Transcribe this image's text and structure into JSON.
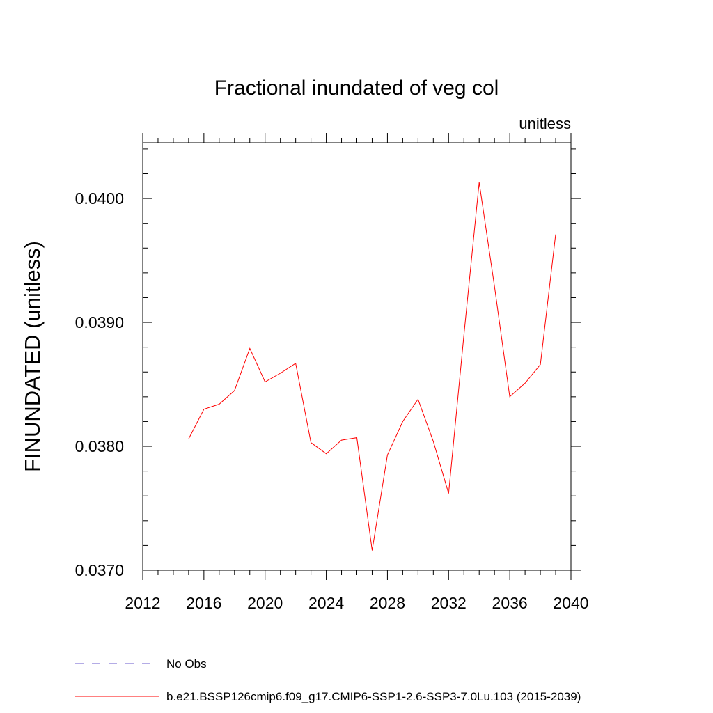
{
  "chart_data": {
    "type": "line",
    "title": "Fractional inundated of veg col",
    "units_label": "unitless",
    "ylabel": "FINUNDATED  (unitless)",
    "xlabel": "",
    "xlim": [
      2012,
      2040
    ],
    "ylim": [
      0.037,
      0.04045
    ],
    "x_ticks": [
      "2012",
      "2016",
      "2020",
      "2024",
      "2028",
      "2032",
      "2036",
      "2040"
    ],
    "y_ticks": [
      "0.0370",
      "0.0380",
      "0.0390",
      "0.0400"
    ],
    "grid": false,
    "legend_position": "bottom",
    "series": [
      {
        "name": "b.e21.BSSP126cmip6.f09_g17.CMIP6-SSP1-2.6-SSP3-7.0Lu.103 (2015-2039)",
        "color": "#ff0000",
        "style": "solid",
        "x": [
          2015,
          2016,
          2017,
          2018,
          2019,
          2020,
          2021,
          2022,
          2023,
          2024,
          2025,
          2026,
          2027,
          2028,
          2029,
          2030,
          2031,
          2032,
          2033,
          2034,
          2035,
          2036,
          2037,
          2038,
          2039
        ],
        "values": [
          0.03806,
          0.0383,
          0.03834,
          0.03845,
          0.03879,
          0.03852,
          0.03859,
          0.03867,
          0.03803,
          0.03794,
          0.03805,
          0.03807,
          0.03716,
          0.03793,
          0.0382,
          0.03838,
          0.03804,
          0.03762,
          0.0389,
          0.04013,
          0.03929,
          0.0384,
          0.03851,
          0.03866,
          0.03971
        ]
      }
    ],
    "legend": [
      {
        "label": "No Obs",
        "color": "#6a5acd",
        "style": "dashed"
      },
      {
        "label": "b.e21.BSSP126cmip6.f09_g17.CMIP6-SSP1-2.6-SSP3-7.0Lu.103 (2015-2039)",
        "color": "#ff0000",
        "style": "solid"
      }
    ]
  }
}
